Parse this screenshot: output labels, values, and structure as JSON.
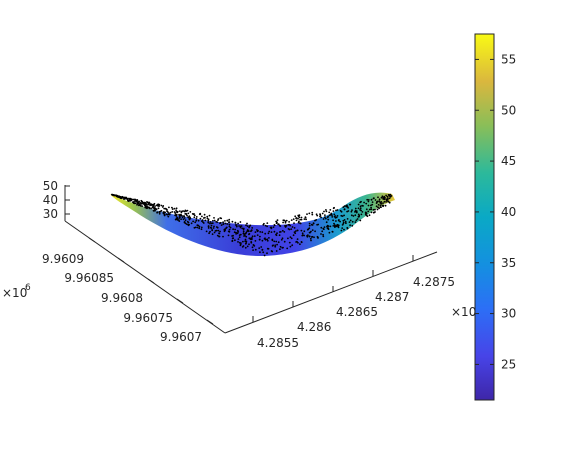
{
  "chart_data": {
    "type": "surface",
    "view": "3d",
    "title": "",
    "x_axis": {
      "label": "",
      "exponent_label": "×10",
      "ticks": [
        "4.2855",
        "4.286",
        "4.2865",
        "4.287",
        "4.2875"
      ]
    },
    "y_axis": {
      "label": "",
      "exponent_label": "×10",
      "exponent_power": "6",
      "ticks": [
        "9.9607",
        "9.96075",
        "9.9608",
        "9.96085",
        "9.9609"
      ]
    },
    "z_axis": {
      "label": "",
      "ticks": [
        "30",
        "40",
        "50"
      ]
    },
    "colorbar": {
      "range": [
        21.5,
        57.5
      ],
      "ticks": [
        "25",
        "30",
        "35",
        "40",
        "45",
        "50",
        "55"
      ],
      "tick_values": [
        25,
        30,
        35,
        40,
        45,
        50,
        55
      ],
      "colormap": "parula"
    },
    "surface": {
      "description_shape": "crescent",
      "value_min": 22,
      "value_max": 57,
      "point_markers": "black dots"
    },
    "grid": false
  }
}
